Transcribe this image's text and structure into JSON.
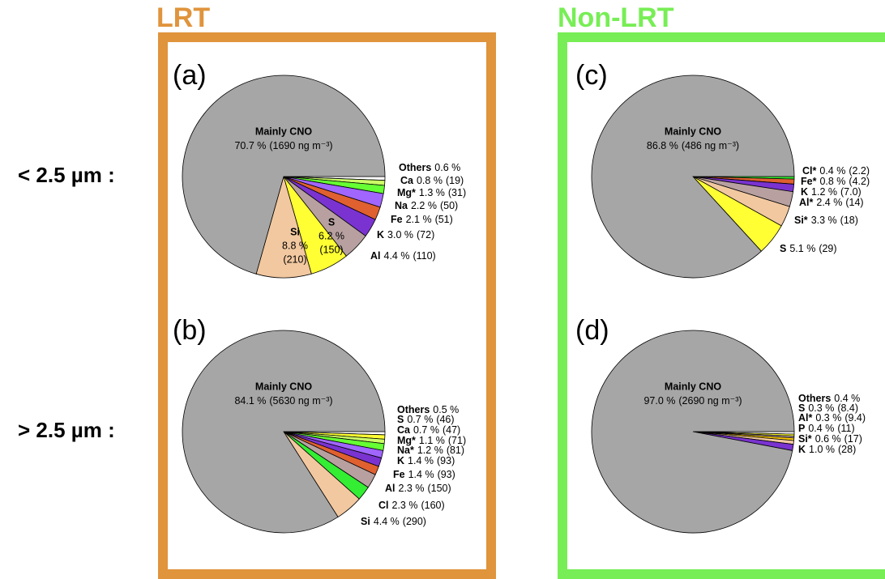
{
  "groups": [
    "LRT",
    "Non-LRT"
  ],
  "size_ranges": [
    "< 2.5 µm :",
    "> 2.5 µm :"
  ],
  "chart_data": [
    {
      "type": "pie",
      "panel": "(a)",
      "categories": [
        "Others",
        "Ca",
        "Mg*",
        "Na",
        "Fe",
        "K",
        "Al",
        "S",
        "Si",
        "Mainly CNO"
      ],
      "values": [
        0.6,
        0.8,
        1.3,
        2.2,
        2.1,
        3.0,
        4.4,
        6.2,
        8.8,
        70.7
      ],
      "value_labels": [
        "0.6 %",
        "0.8 %",
        "1.3 %",
        "2.2 %",
        "2.1 %",
        "3.0 %",
        "4.4 %",
        "6.2 %",
        "8.8 %",
        "70.7 %"
      ],
      "amounts": [
        null,
        19,
        31,
        50,
        51,
        72,
        110,
        150,
        210,
        1690
      ],
      "amount_labels": [
        null,
        "(19)",
        "(31)",
        "(50)",
        "(51)",
        "(72)",
        "(110)",
        "(150)",
        "(210)",
        "(1690 ng m⁻³)"
      ],
      "colors": [
        "#ffffff",
        "#ccff66",
        "#66ff33",
        "#a066ff",
        "#e06030",
        "#7a33d0",
        "#b8a0a0",
        "#ffff33",
        "#f2c8a0",
        "#a6a6a6"
      ]
    },
    {
      "type": "pie",
      "panel": "(b)",
      "categories": [
        "Others",
        "S",
        "Ca",
        "Mg*",
        "Na*",
        "K",
        "Fe",
        "Al",
        "Cl",
        "Si",
        "Mainly CNO"
      ],
      "values": [
        0.5,
        0.7,
        0.7,
        1.1,
        1.2,
        1.4,
        1.4,
        2.3,
        2.3,
        4.4,
        84.1
      ],
      "value_labels": [
        "0.5 %",
        "0.7 %",
        "0.7 %",
        "1.1 %",
        "1.2 %",
        "1.4 %",
        "1.4 %",
        "2.3 %",
        "2.3 %",
        "4.4 %",
        "84.1 %"
      ],
      "amounts": [
        null,
        46,
        47,
        71,
        81,
        93,
        93,
        150,
        160,
        290,
        5630
      ],
      "amount_labels": [
        null,
        "(46)",
        "(47)",
        "(71)",
        "(81)",
        "(93)",
        "(93)",
        "(150)",
        "(160)",
        "(290)",
        "(5630 ng m⁻³)"
      ],
      "colors": [
        "#ffffff",
        "#ffff33",
        "#ccff66",
        "#66ff33",
        "#a066ff",
        "#7a33d0",
        "#e06030",
        "#b8a0a0",
        "#33ee33",
        "#f2c8a0",
        "#a6a6a6"
      ]
    },
    {
      "type": "pie",
      "panel": "(c)",
      "categories": [
        "Cl*",
        "Fe*",
        "K",
        "Al*",
        "Si*",
        "S",
        "Mainly CNO"
      ],
      "values": [
        0.4,
        0.8,
        1.2,
        2.4,
        3.3,
        5.1,
        86.8
      ],
      "value_labels": [
        "0.4 %",
        "0.8 %",
        "1.2 %",
        "2.4 %",
        "3.3 %",
        "5.1 %",
        "86.8 %"
      ],
      "amounts": [
        2.2,
        4.2,
        7.0,
        14,
        18,
        29,
        486
      ],
      "amount_labels": [
        "(2.2)",
        "(4.2)",
        "(7.0)",
        "(14)",
        "(18)",
        "(29)",
        "(486 ng m⁻³)"
      ],
      "colors": [
        "#33ee33",
        "#e06030",
        "#7a33d0",
        "#b8a0a0",
        "#f2c8a0",
        "#ffff33",
        "#a6a6a6"
      ]
    },
    {
      "type": "pie",
      "panel": "(d)",
      "categories": [
        "Others",
        "S",
        "Al*",
        "P",
        "Si*",
        "K",
        "Mainly CNO"
      ],
      "values": [
        0.4,
        0.3,
        0.3,
        0.4,
        0.6,
        1.0,
        97.0
      ],
      "value_labels": [
        "0.4 %",
        "0.3 %",
        "0.3 %",
        "0.4 %",
        "0.6 %",
        "1.0 %",
        "97.0 %"
      ],
      "amounts": [
        null,
        8.4,
        9.4,
        11,
        17,
        28,
        2690
      ],
      "amount_labels": [
        null,
        "(8.4)",
        "(9.4)",
        "(11)",
        "(17)",
        "(28)",
        "(2690 ng m⁻³)"
      ],
      "colors": [
        "#ffffff",
        "#ffff33",
        "#b8a0a0",
        "#ffcc00",
        "#f2c8a0",
        "#7a33d0",
        "#a6a6a6"
      ]
    }
  ]
}
